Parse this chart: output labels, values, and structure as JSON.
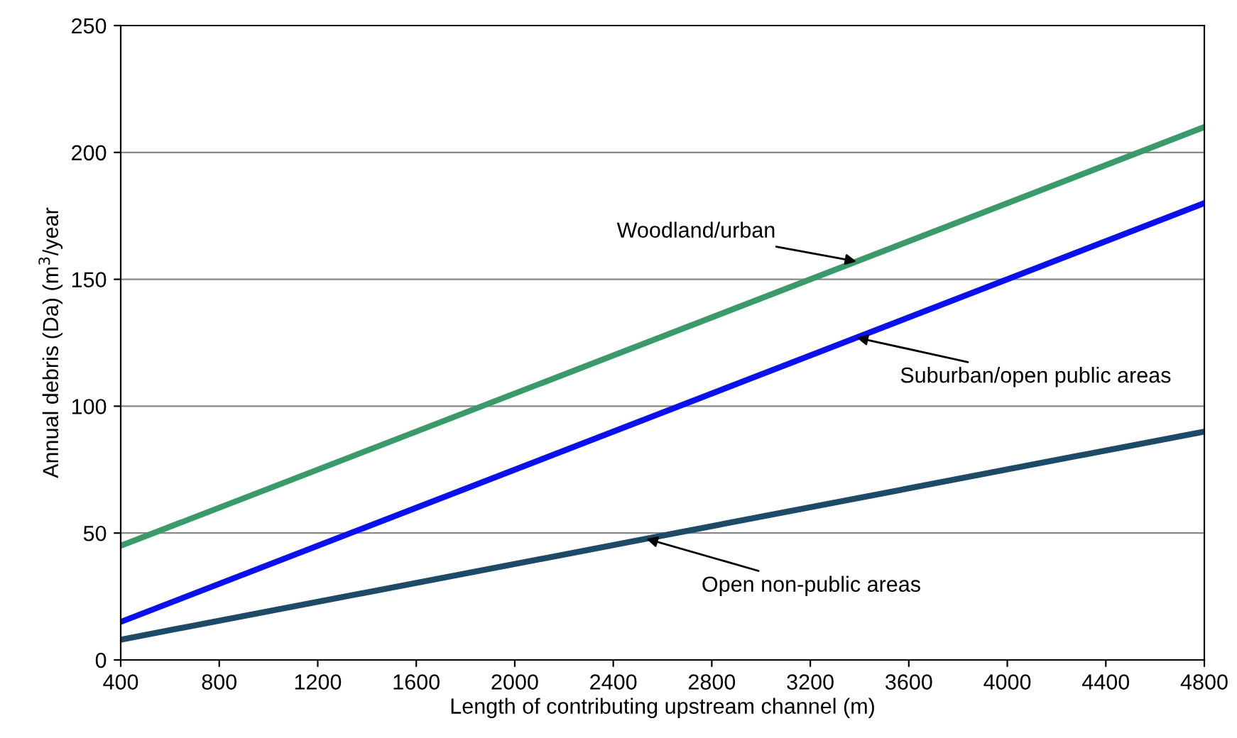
{
  "chart_data": {
    "type": "line",
    "xlabel": "Length of contributing upstream channel (m)",
    "ylabel": "Annual debris (Da) (m$^{3}$/year",
    "x": [
      400,
      4800
    ],
    "series": [
      {
        "name": "Woodland/urban",
        "color": "#3a9a6a",
        "values": [
          45,
          210
        ]
      },
      {
        "name": "Suburban/open public areas",
        "color": "#0a10f0",
        "values": [
          15,
          180
        ]
      },
      {
        "name": "Open non-public areas",
        "color": "#1d4a66",
        "values": [
          8,
          90
        ]
      }
    ],
    "xlim": [
      400,
      4800
    ],
    "xticks": [
      400,
      800,
      1200,
      1600,
      2000,
      2400,
      2800,
      3200,
      3600,
      4000,
      4400,
      4800
    ],
    "ylim": [
      0,
      250
    ],
    "yticks": [
      0,
      50,
      100,
      150,
      200,
      250
    ],
    "grid": "y",
    "legend": false,
    "marker": "none",
    "line_style": "solid"
  }
}
